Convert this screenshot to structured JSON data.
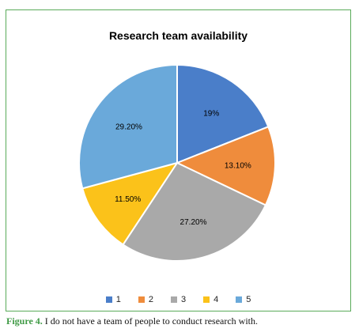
{
  "chart_data": {
    "type": "pie",
    "title": "Research team availability",
    "categories": [
      "1",
      "2",
      "3",
      "4",
      "5"
    ],
    "values": [
      19,
      13.1,
      27.2,
      11.5,
      29.2
    ],
    "data_labels": [
      "19%",
      "13.10%",
      "27.20%",
      "11.50%",
      "29.20%"
    ],
    "colors": [
      "#4a7ec9",
      "#ef8c3c",
      "#a9a9a9",
      "#fbc21a",
      "#6aa9da"
    ],
    "legend_position": "bottom",
    "start_angle_deg": 0,
    "direction": "clockwise"
  },
  "caption": {
    "label": "Figure 4.",
    "text": " I do not have a team of people to conduct research with."
  },
  "frame_color": "#5aab5a"
}
